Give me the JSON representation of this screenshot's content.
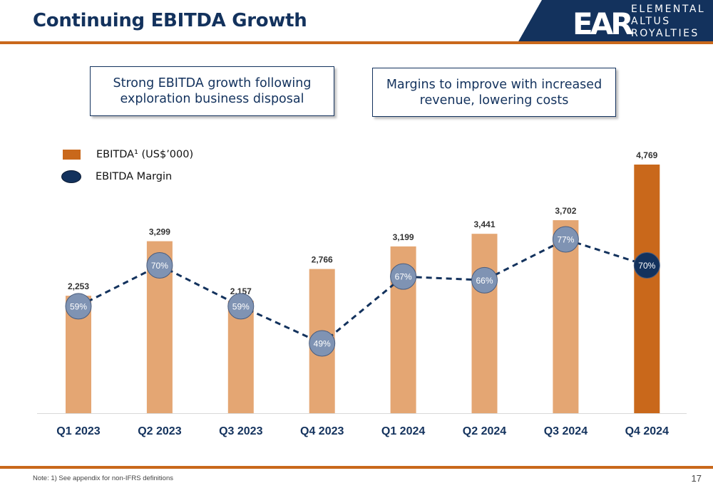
{
  "slide": {
    "title": "Continuing EBITDA Growth",
    "page_number": "17",
    "footnote": "Note: 1) See appendix for non-IFRS definitions",
    "logo": {
      "mark": "EAR",
      "lines": [
        "ELEMENTAL",
        "ALTUS",
        "ROYALTIES"
      ]
    },
    "callouts": [
      {
        "text": "Strong EBITDA growth following exploration business disposal"
      },
      {
        "text": "Margins to improve with increased revenue, lowering costs"
      }
    ]
  },
  "colors": {
    "brand_navy": "#13325d",
    "brand_orange": "#c9681b",
    "bar_light": "#e4a673",
    "margin_marker": "#7f93b3"
  },
  "chart_data": {
    "type": "bar",
    "categories": [
      "Q1 2023",
      "Q2 2023",
      "Q3 2023",
      "Q4 2023",
      "Q1 2024",
      "Q2 2024",
      "Q3 2024",
      "Q4 2024"
    ],
    "series": [
      {
        "name": "EBITDA¹ (US$’000)",
        "type": "bar",
        "values": [
          2253,
          3299,
          2157,
          2766,
          3199,
          3441,
          3702,
          4769
        ],
        "labels": [
          "2,253",
          "3,299",
          "2,157",
          "2,766",
          "3,199",
          "3,441",
          "3,702",
          "4,769"
        ],
        "highlight_index": 7
      },
      {
        "name": "EBITDA Margin",
        "type": "line",
        "style": "dashed",
        "values": [
          59,
          70,
          59,
          49,
          67,
          66,
          77,
          70
        ],
        "labels": [
          "59%",
          "70%",
          "59%",
          "49%",
          "67%",
          "66%",
          "77%",
          "70%"
        ],
        "highlight_index": 7
      }
    ],
    "legend_position": "top-left",
    "grid": false,
    "ylim": [
      0,
      4769
    ]
  }
}
